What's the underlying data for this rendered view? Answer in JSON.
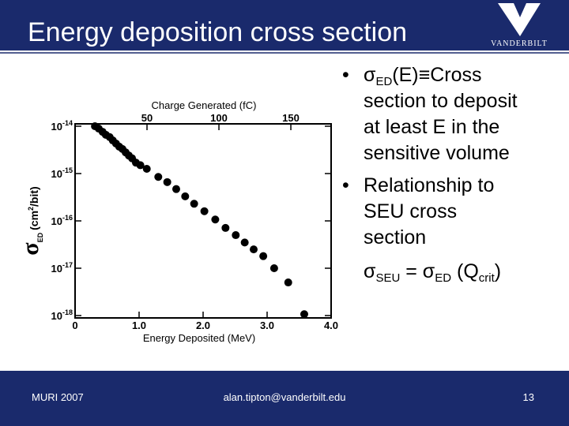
{
  "slide": {
    "title": "Energy deposition cross section",
    "logo_text": "VANDERBILT",
    "bullets": [
      {
        "lines": [
          [
            "σ",
            "ED",
            "(E)≡Cross"
          ],
          [
            "section to deposit"
          ],
          [
            "at least E in the"
          ],
          [
            "sensitive volume"
          ]
        ]
      },
      {
        "lines": [
          [
            "Relationship to"
          ],
          [
            "SEU cross"
          ],
          [
            "section"
          ],
          [
            "σ",
            "SEU",
            " = σ",
            "ED",
            " (Q",
            "crit",
            ")"
          ]
        ]
      }
    ],
    "footer": {
      "left": "MURI 2007",
      "center": "alan.tipton@vanderbilt.edu",
      "right": "13"
    }
  },
  "chart_data": {
    "type": "scatter",
    "title": "Charge Generated (fC)",
    "xlabel": "Energy Deposited (MeV)",
    "ylabel": [
      "σ",
      "ED",
      "(cm",
      "2",
      "/bit)"
    ],
    "log_y": true,
    "color": "#000000",
    "xlim": [
      0,
      4
    ],
    "xticks": [
      0,
      {
        "value": 1,
        "label": "1.0"
      },
      {
        "value": 2,
        "label": "2.0"
      },
      {
        "value": 3,
        "label": "3.0"
      },
      {
        "value": 4,
        "label": "4.0"
      }
    ],
    "x2lim": [
      0,
      178
    ],
    "x2ticks": [
      50,
      100,
      150
    ],
    "ylim": [
      1e-18,
      1e-14
    ],
    "yticks": [
      {
        "value": 1e-14,
        "label": "10-14"
      },
      {
        "value": 1e-15,
        "label": "10-15"
      },
      {
        "value": 1e-16,
        "label": "10-16"
      },
      {
        "value": 1e-17,
        "label": "10-17"
      },
      {
        "value": 1e-18,
        "label": "10-18"
      }
    ],
    "x": [
      0.31,
      0.37,
      0.43,
      0.48,
      0.54,
      0.59,
      0.64,
      0.69,
      0.74,
      0.79,
      0.84,
      0.89,
      0.95,
      1.02,
      1.12,
      1.3,
      1.44,
      1.58,
      1.72,
      1.86,
      2.02,
      2.19,
      2.35,
      2.51,
      2.65,
      2.79,
      2.94,
      3.11,
      3.33,
      3.58
    ],
    "values": [
      1e-14,
      8.9e-15,
      7.6e-15,
      6.6e-15,
      5.9e-15,
      5e-15,
      4.3e-15,
      3.7e-15,
      3.3e-15,
      2.8e-15,
      2.4e-15,
      2.1e-15,
      1.7e-15,
      1.5e-15,
      1.26e-15,
      8.5e-16,
      6.6e-16,
      4.7e-16,
      3.3e-16,
      2.3e-16,
      1.6e-16,
      1.07e-16,
      7.1e-17,
      5e-17,
      3.5e-17,
      2.5e-17,
      1.8e-17,
      1e-17,
      5e-18,
      1.07e-18
    ]
  }
}
